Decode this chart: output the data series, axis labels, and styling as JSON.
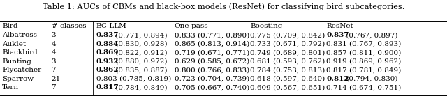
{
  "title": "Table 1: AUCs of CBMs and black-box models (ResNet) for classifying bird subcategories.",
  "col_headers": [
    "Bird",
    "# classes",
    "BC-LLM",
    "One-pass",
    "Boosting",
    "ResNet"
  ],
  "rows": [
    [
      "Albatross",
      "3",
      "0.837",
      "(0.771, 0.894)",
      true,
      "0.833 (0.771, 0.890)",
      false,
      "0.775 (0.709, 0.842)",
      false,
      "0.837",
      "(0.767, 0.897)",
      true
    ],
    [
      "Auklet",
      "4",
      "0.884",
      "(0.830, 0.928)",
      true,
      "0.865 (0.813, 0.914)",
      false,
      "0.733 (0.671, 0.792)",
      false,
      "0.831 (0.767, 0.893)",
      "",
      false
    ],
    [
      "Blackbird",
      "4",
      "0.869",
      "(0.822, 0.912)",
      true,
      "0.719 (0.671, 0.771)",
      false,
      "0.749 (0.689, 0.801)",
      false,
      "0.857 (0.811, 0.900)",
      "",
      false
    ],
    [
      "Bunting",
      "3",
      "0.932",
      "(0.880, 0.972)",
      true,
      "0.629 (0.585, 0.672)",
      false,
      "0.681 (0.593, 0.762)",
      false,
      "0.919 (0.869, 0.962)",
      "",
      false
    ],
    [
      "Flycatcher",
      "7",
      "0.862",
      "(0.835, 0.887)",
      true,
      "0.800 (0.766, 0.833)",
      false,
      "0.784 (0.753, 0.813)",
      false,
      "0.817 (0.781, 0.849)",
      "",
      false
    ],
    [
      "Sparrow",
      "21",
      "0.803 (0.785, 0.819)",
      "",
      false,
      "0.723 (0.704, 0.739)",
      false,
      "0.618 (0.597, 0.640)",
      false,
      "0.812",
      "(0.794, 0.830)",
      true
    ],
    [
      "Tern",
      "7",
      "0.817",
      "(0.784, 0.849)",
      true,
      "0.705 (0.667, 0.740)",
      false,
      "0.609 (0.567, 0.651)",
      false,
      "0.714 (0.674, 0.751)",
      "",
      false
    ]
  ],
  "font_size": 7.5,
  "title_font_size": 8.2,
  "figsize": [
    6.4,
    1.38
  ],
  "dpi": 100
}
